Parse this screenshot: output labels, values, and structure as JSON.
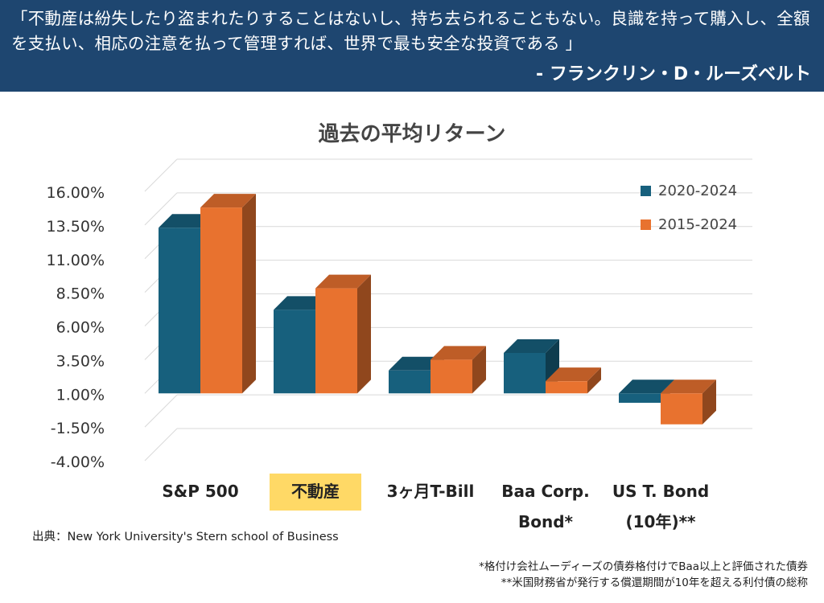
{
  "banner": {
    "quote": "「不動産は紛失したり盗まれたりすることはないし、持ち去られることもない。良識を持って購入し、全額を支払い、相応の注意を払って管理すれば、世界で最も安全な投資である 」",
    "attribution": "- フランクリン・D・ルーズベルト"
  },
  "colors": {
    "banner": "#1e4670",
    "series_2020_2024": "#17607d",
    "series_2015_2024": "#e8722f",
    "highlight": "#ffd966"
  },
  "chart_data": {
    "type": "bar",
    "title": "過去の平均リターン",
    "categories": [
      "S&P 500",
      "不動産",
      "3ヶ月T-Bill",
      "Baa Corp. Bond*",
      "US T. Bond (10年)**"
    ],
    "category_lines": [
      [
        "S&P 500"
      ],
      [
        "不動産"
      ],
      [
        "3ヶ月T-Bill"
      ],
      [
        "Baa Corp.",
        "Bond*"
      ],
      [
        "US T. Bond",
        "(10年)**"
      ]
    ],
    "highlighted_category": "不動産",
    "series": [
      {
        "name": "2020-2024",
        "values": [
          13.3,
          7.2,
          2.7,
          4.0,
          0.3
        ]
      },
      {
        "name": "2015-2024",
        "values": [
          14.8,
          8.8,
          3.5,
          1.9,
          -1.3
        ]
      }
    ],
    "yticks": [
      "16.00%",
      "13.50%",
      "11.00%",
      "8.50%",
      "6.00%",
      "3.50%",
      "1.00%",
      "-1.50%",
      "-4.00%"
    ],
    "ylim": [
      -4.0,
      16.0
    ],
    "baseline": 1.0,
    "grid": true,
    "legend_position": "top-right",
    "style": "3d-column"
  },
  "footer": {
    "source": "出典：New York University's Stern school of Business",
    "footnote1": "*格付け会社ムーディーズの債券格付けでBaa以上と評価された債券",
    "footnote2": "**米国財務省が発行する償還期間が10年を超える利付債の総称"
  }
}
